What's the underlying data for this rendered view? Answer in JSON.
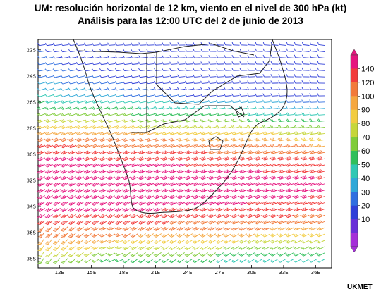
{
  "title": {
    "line1": "UM: resolución horizontal de 12 km, viento en el nivel de 300 hPa (kt)",
    "line2": "Análisis para las 12:00 UTC del 2 de junio de 2013"
  },
  "map": {
    "lat_labels": [
      "22S",
      "24S",
      "26S",
      "28S",
      "30S",
      "32S",
      "34S",
      "36S",
      "38S"
    ],
    "lon_labels": [
      "12E",
      "15E",
      "18E",
      "21E",
      "24E",
      "27E",
      "30E",
      "33E",
      "36E"
    ],
    "symbol": "wind-barbs",
    "jet_core_lat_deg": -32.5
  },
  "colorbar": {
    "labels": [
      "140",
      "120",
      "100",
      "90",
      "80",
      "70",
      "60",
      "50",
      "40",
      "30",
      "20",
      "10"
    ],
    "colors": [
      "#e6157f",
      "#f23b3b",
      "#f27a3a",
      "#f5a740",
      "#f2cc40",
      "#c6d63a",
      "#7fcc3a",
      "#2fbf5a",
      "#2fc8b4",
      "#2fa8d8",
      "#2f6ee0",
      "#2f3fd8",
      "#6a2fd8",
      "#a52fd8"
    ]
  },
  "credit": "UKMET"
}
